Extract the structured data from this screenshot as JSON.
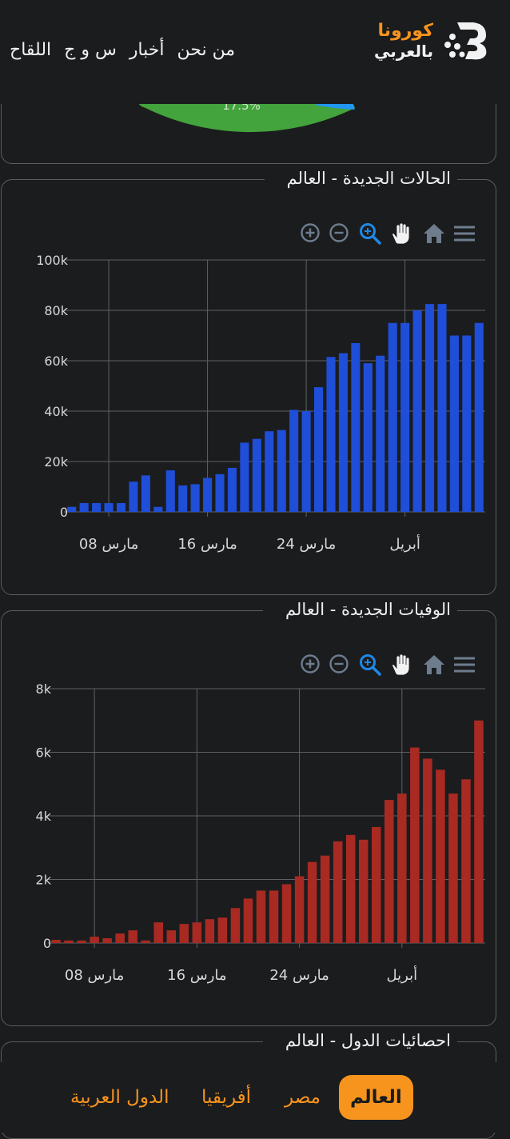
{
  "header": {
    "logo_line1": "كورونا",
    "logo_line2": "بالعربي",
    "nav": [
      "اللقاح",
      "س و ج",
      "أخبار",
      "من نحن"
    ]
  },
  "pie_card": {
    "slice_label": "17.5%",
    "colors": {
      "green": "#43a33c",
      "yellow": "#f5c200",
      "blue": "#2196f3"
    }
  },
  "cases_card": {
    "title": "الحالات الجديدة - العالم",
    "toolbar_icons": [
      "zoom-in-icon",
      "zoom-out-icon",
      "zoom-selection-icon",
      "pan-hand-icon",
      "reset-home-icon",
      "menu-icon"
    ]
  },
  "deaths_card": {
    "title": "الوفيات الجديدة - العالم",
    "toolbar_icons": [
      "zoom-in-icon",
      "zoom-out-icon",
      "zoom-selection-icon",
      "pan-hand-icon",
      "reset-home-icon",
      "menu-icon"
    ]
  },
  "stats_card": {
    "title": "احصائيات الدول - العالم"
  },
  "bottom_nav": {
    "tabs": [
      "العالم",
      "مصر",
      "أفريقيا",
      "الدول العربية"
    ],
    "active": 0,
    "accent": "#f7941d"
  },
  "chart_data": [
    {
      "type": "bar",
      "ylim": [
        0,
        100000
      ],
      "y_ticks": [
        0,
        20000,
        40000,
        60000,
        80000,
        100000
      ],
      "y_tick_labels": [
        "0",
        "20k",
        "40k",
        "60k",
        "80k",
        "100k"
      ],
      "x_tick_labels": [
        "مارس 08",
        "مارس 16",
        "مارس 24",
        "أبريل"
      ],
      "x_tick_index": [
        3,
        11,
        19,
        27
      ],
      "color": "#1f4ed8",
      "grid": true,
      "values": [
        2000,
        3500,
        3500,
        3500,
        3500,
        12000,
        14500,
        2000,
        16500,
        10500,
        11000,
        13500,
        15000,
        17500,
        27500,
        29000,
        32000,
        32500,
        40500,
        40000,
        49500,
        61500,
        63000,
        67000,
        59000,
        62000,
        75000,
        75000,
        80000,
        82500,
        82500,
        70000,
        70000,
        75000
      ]
    },
    {
      "type": "bar",
      "ylim": [
        0,
        8000
      ],
      "y_ticks": [
        0,
        2000,
        4000,
        6000,
        8000
      ],
      "y_tick_labels": [
        "0",
        "2k",
        "4k",
        "6k",
        "8k"
      ],
      "x_tick_labels": [
        "مارس 08",
        "مارس 16",
        "مارس 24",
        "أبريل"
      ],
      "x_tick_index": [
        3,
        11,
        19,
        27
      ],
      "color": "#a82a22",
      "grid": true,
      "values": [
        100,
        80,
        80,
        200,
        150,
        300,
        400,
        80,
        650,
        400,
        600,
        650,
        750,
        800,
        1100,
        1400,
        1650,
        1650,
        1850,
        2100,
        2550,
        2750,
        3200,
        3400,
        3250,
        3650,
        4500,
        4700,
        6150,
        5800,
        5450,
        4700,
        5150,
        7000
      ]
    }
  ]
}
